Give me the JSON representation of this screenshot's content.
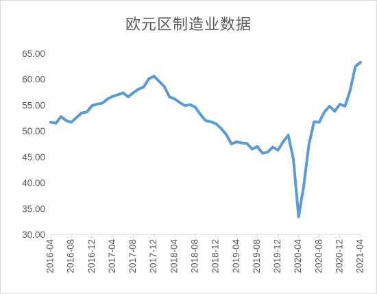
{
  "chart_data": {
    "type": "line",
    "title": "欧元区制造业数据",
    "xlabel": "",
    "ylabel": "",
    "ylim": [
      30,
      65
    ],
    "yticks": [
      "30.00",
      "35.00",
      "40.00",
      "45.00",
      "50.00",
      "55.00",
      "60.00",
      "65.00"
    ],
    "xticks": [
      "2016-04",
      "2016-08",
      "2016-12",
      "2017-04",
      "2017-08",
      "2017-12",
      "2018-04",
      "2018-08",
      "2018-12",
      "2019-04",
      "2019-08",
      "2019-12",
      "2020-04",
      "2020-08",
      "2020-12",
      "2021-04"
    ],
    "grid": false,
    "legend": "none",
    "series": [
      {
        "color": "#5b9bd5",
        "x": [
          "2016-04",
          "2016-05",
          "2016-06",
          "2016-07",
          "2016-08",
          "2016-09",
          "2016-10",
          "2016-11",
          "2016-12",
          "2017-01",
          "2017-02",
          "2017-03",
          "2017-04",
          "2017-05",
          "2017-06",
          "2017-07",
          "2017-08",
          "2017-09",
          "2017-10",
          "2017-11",
          "2017-12",
          "2018-01",
          "2018-02",
          "2018-03",
          "2018-04",
          "2018-05",
          "2018-06",
          "2018-07",
          "2018-08",
          "2018-09",
          "2018-10",
          "2018-11",
          "2018-12",
          "2019-01",
          "2019-02",
          "2019-03",
          "2019-04",
          "2019-05",
          "2019-06",
          "2019-07",
          "2019-08",
          "2019-09",
          "2019-10",
          "2019-11",
          "2019-12",
          "2020-01",
          "2020-02",
          "2020-03",
          "2020-04",
          "2020-05",
          "2020-06",
          "2020-07",
          "2020-08",
          "2020-09",
          "2020-10",
          "2020-11",
          "2020-12",
          "2021-01",
          "2021-02",
          "2021-03",
          "2021-04"
        ],
        "values": [
          51.7,
          51.5,
          52.8,
          52.0,
          51.7,
          52.6,
          53.5,
          53.7,
          54.9,
          55.2,
          55.4,
          56.2,
          56.7,
          57.0,
          57.4,
          56.6,
          57.4,
          58.1,
          58.5,
          60.1,
          60.6,
          59.6,
          58.6,
          56.6,
          56.2,
          55.5,
          54.9,
          55.1,
          54.6,
          53.2,
          52.0,
          51.8,
          51.4,
          50.5,
          49.3,
          47.5,
          47.9,
          47.7,
          47.6,
          46.5,
          47.0,
          45.7,
          45.9,
          46.9,
          46.3,
          47.9,
          49.2,
          44.5,
          33.4,
          39.4,
          47.4,
          51.8,
          51.7,
          53.7,
          54.8,
          53.8,
          55.2,
          54.8,
          57.9,
          62.5,
          63.3
        ]
      }
    ]
  }
}
